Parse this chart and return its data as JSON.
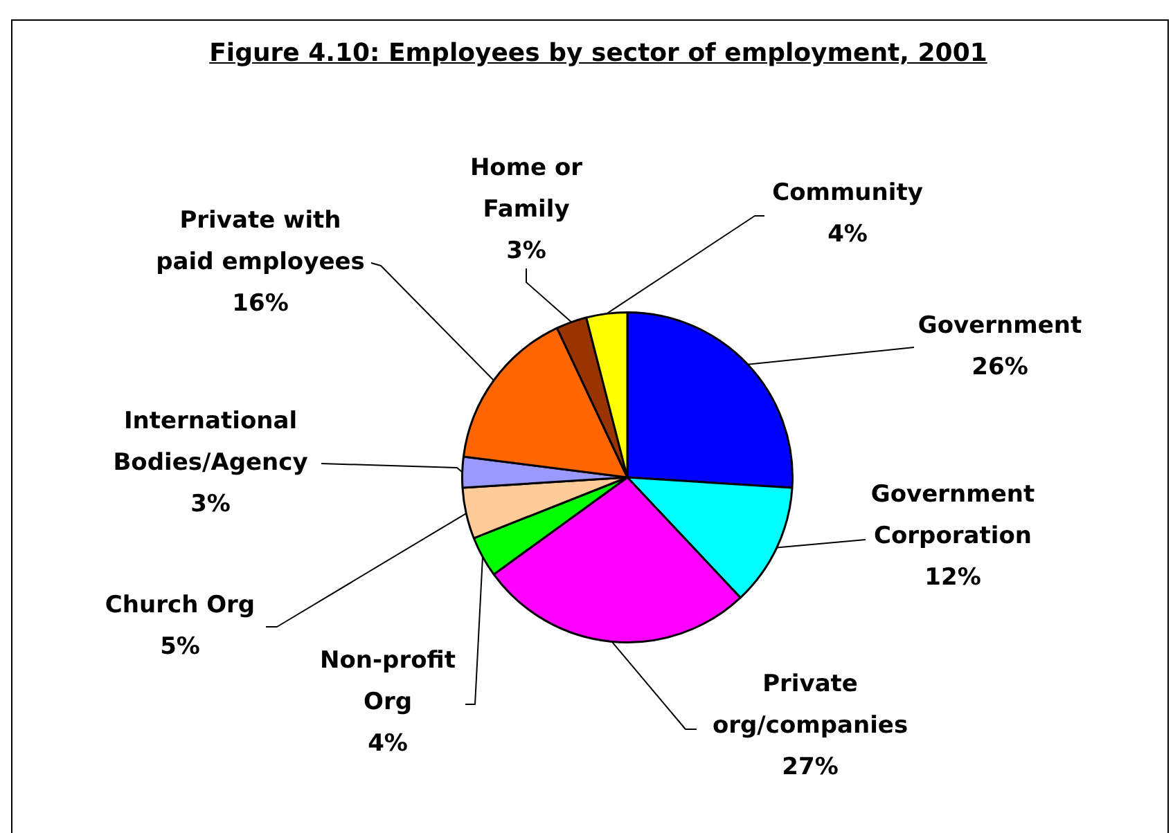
{
  "chart_data": {
    "type": "pie",
    "title": "Figure 4.10: Employees by sector of employment, 2001",
    "categories": [
      "Government",
      "Government\nCorporation",
      "Private\norg/companies",
      "Non-profit\nOrg",
      "Church Org",
      "International\nBodies/Agency",
      "Private with\npaid employees",
      "Home or\nFamily",
      "Community"
    ],
    "values": [
      26,
      12,
      27,
      4,
      5,
      3,
      16,
      3,
      4
    ],
    "colors": [
      "#0000ff",
      "#00ffff",
      "#ff00ff",
      "#00ff00",
      "#ffcc99",
      "#9999ff",
      "#ff6600",
      "#993300",
      "#ffff00"
    ],
    "value_labels": [
      "26%",
      "12%",
      "27%",
      "4%",
      "5%",
      "3%",
      "16%",
      "3%",
      "4%"
    ]
  }
}
